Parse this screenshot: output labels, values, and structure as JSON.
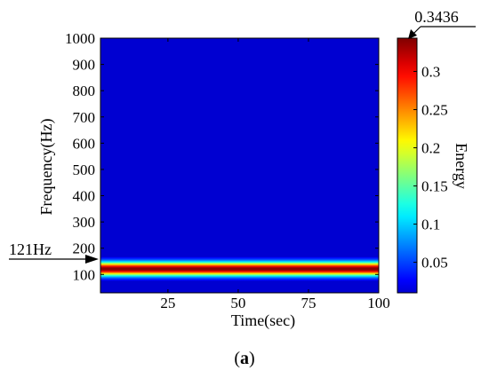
{
  "chart_data": {
    "type": "heatmap",
    "title": "",
    "xlabel": "Time(sec)",
    "ylabel": "Frequency(Hz)",
    "colorbar_label": "Energy",
    "xlim": [
      1,
      100
    ],
    "ylim": [
      30,
      1000
    ],
    "x_ticks": [
      25,
      50,
      75,
      100
    ],
    "y_ticks": [
      100,
      200,
      300,
      400,
      500,
      600,
      700,
      800,
      900,
      1000
    ],
    "colorbar_ticks": [
      0.05,
      0.1,
      0.15,
      0.2,
      0.25,
      0.3
    ],
    "colorbar_range": [
      0.01,
      0.3436
    ],
    "colormap": "jet",
    "background_energy": 0.01,
    "band": {
      "center_frequency": 121,
      "peak_energy": 0.3436,
      "half_width_hz": 45,
      "time_range": [
        1,
        100
      ]
    },
    "annotations": [
      {
        "text": "121Hz",
        "target": "frequency",
        "value": 121
      },
      {
        "text": "0.3436",
        "target": "colorbar-max",
        "value": 0.3436
      }
    ]
  },
  "caption": {
    "open": "(",
    "letter": "a",
    "close": ")"
  }
}
